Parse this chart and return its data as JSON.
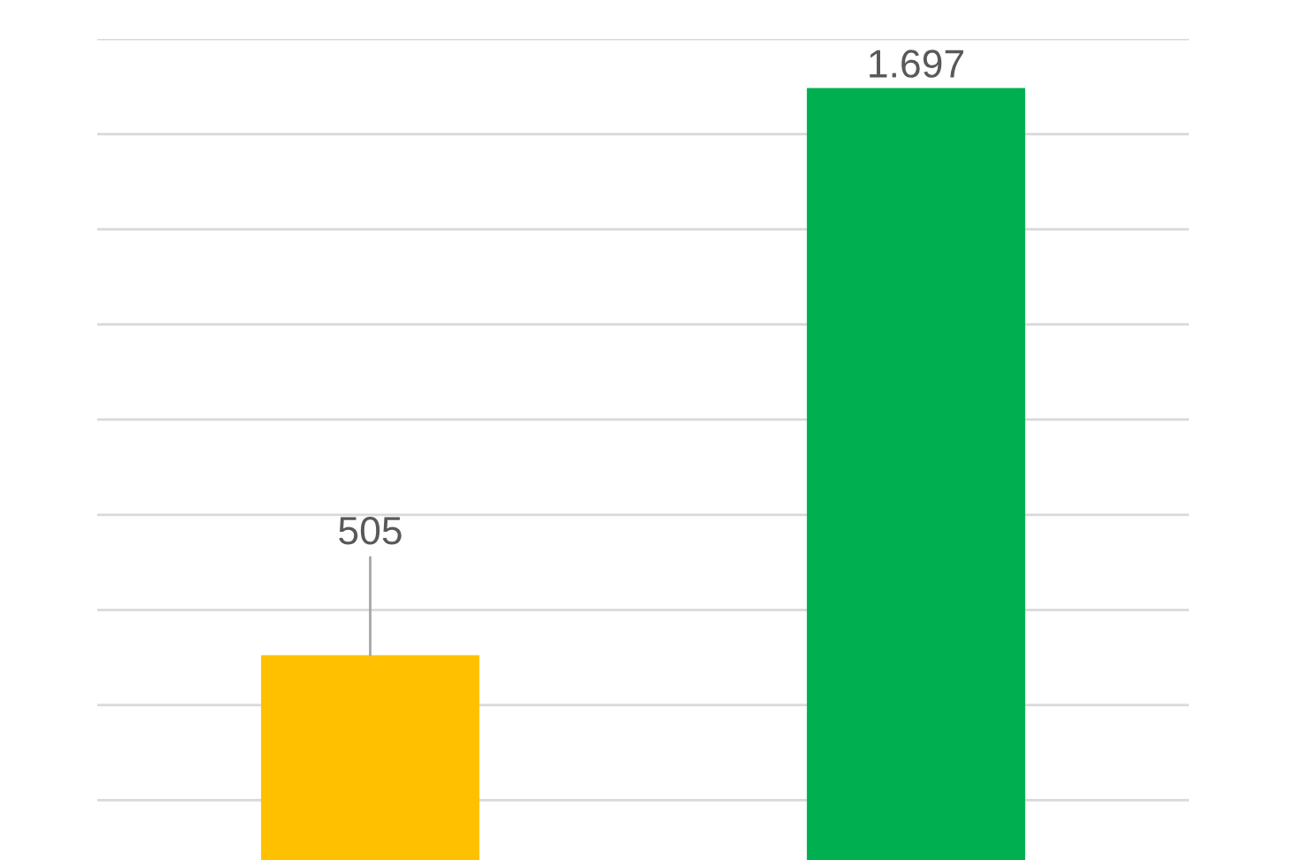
{
  "chart_data": {
    "type": "bar",
    "categories": [
      null,
      null
    ],
    "values": [
      505,
      1697
    ],
    "colors": [
      "#ffc000",
      "#00b050"
    ],
    "value_labels": [
      "505",
      "1.697"
    ],
    "ylim": [
      0,
      1800
    ],
    "yticks": [
      {
        "value": 200,
        "label": null
      },
      {
        "value": 400,
        "label": null
      },
      {
        "value": 600,
        "label": null
      },
      {
        "value": 800,
        "label": null
      },
      {
        "value": 1000,
        "label": null
      },
      {
        "value": 1200,
        "label": null
      },
      {
        "value": 1400,
        "label": null
      },
      {
        "value": 1600,
        "label": null
      },
      {
        "value": 1800,
        "label": null
      }
    ],
    "grid": "y"
  }
}
